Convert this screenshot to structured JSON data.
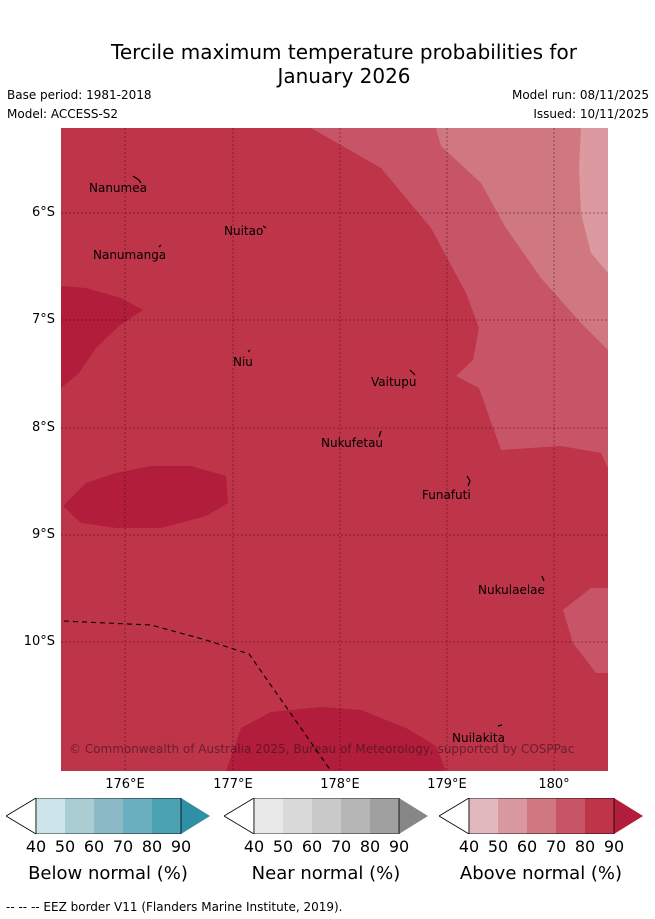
{
  "title": {
    "line1": "Tercile maximum temperature probabilities for",
    "line2": "January 2026"
  },
  "meta": {
    "base_period": "Base period: 1981-2018",
    "model": "Model: ACCESS-S2",
    "model_run": "Model run: 08/11/2025",
    "issued": "Issued: 10/11/2025"
  },
  "axes": {
    "lat_labels": [
      "6°S",
      "7°S",
      "8°S",
      "9°S",
      "10°S"
    ],
    "lon_labels": [
      "176°E",
      "177°E",
      "178°E",
      "179°E",
      "180°"
    ]
  },
  "places": [
    "Nanumea",
    "Nuitao",
    "Nanumanga",
    "Niu",
    "Vaitupu",
    "Nukufetau",
    "Funafuti",
    "Nukulaelae",
    "Nuilakita"
  ],
  "copyright": "© Commonwealth of Australia 2025, Bureau of Meteorology, supported by COSPPac",
  "colors": {
    "above_80": "#be3449",
    "above_90": "#b11d3b",
    "above_70": "#c75567",
    "above_60": "#d07880",
    "above_50": "#dc999f",
    "background": "#ffffff"
  },
  "legend": {
    "ticks": [
      "40",
      "50",
      "60",
      "70",
      "80",
      "90"
    ],
    "below": {
      "label": "Below normal (%)",
      "colors": [
        "#cce4ea",
        "#a9cdd3",
        "#8bbac6",
        "#6aafbf",
        "#4aa2b3",
        "#2f8fa3"
      ]
    },
    "near": {
      "label": "Near normal (%)",
      "colors": [
        "#e8e8e8",
        "#dadada",
        "#c9c9c9",
        "#b5b5b5",
        "#a0a0a0",
        "#878787"
      ]
    },
    "above": {
      "label": "Above normal (%)",
      "colors": [
        "#e1b8be",
        "#d9979e",
        "#d07880",
        "#c75567",
        "#be3449",
        "#b11d3b"
      ]
    }
  },
  "footer": "--  --  -- EEZ border V11 (Flanders Marine Institute, 2019)."
}
